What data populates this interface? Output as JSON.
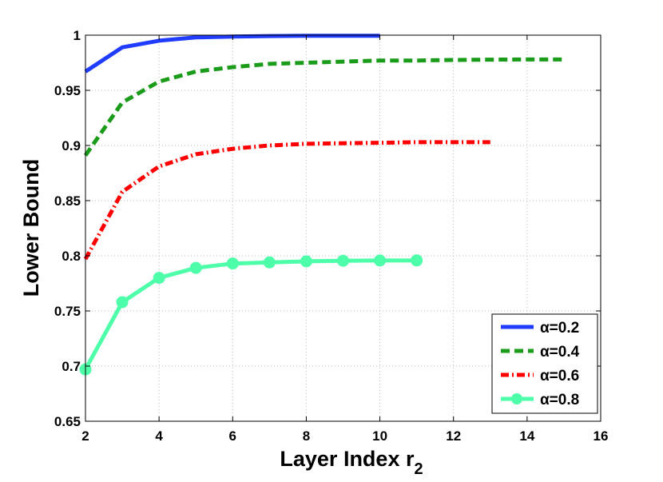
{
  "chart_data": {
    "type": "line",
    "xlabel": "Layer Index r",
    "xlabel_sub": "2",
    "ylabel": "Lower Bound",
    "xlim": [
      2,
      16
    ],
    "ylim": [
      0.65,
      1
    ],
    "xticks": [
      2,
      4,
      6,
      8,
      10,
      12,
      14,
      16
    ],
    "yticks": [
      0.65,
      0.7,
      0.75,
      0.8,
      0.85,
      0.9,
      0.95,
      1
    ],
    "ytick_labels": [
      "0.65",
      "0.7",
      "0.75",
      "0.8",
      "0.85",
      "0.9",
      "0.95",
      "1"
    ],
    "grid": true,
    "legend_position": "bottom-right",
    "series": [
      {
        "name": "α=0.2",
        "color": "#1f3cff",
        "style": "solid",
        "x": [
          2,
          3,
          4,
          5,
          6,
          7,
          8,
          9,
          10
        ],
        "y": [
          0.967,
          0.989,
          0.995,
          0.998,
          0.9988,
          0.9992,
          0.9994,
          0.9995,
          0.9995
        ]
      },
      {
        "name": "α=0.4",
        "color": "#1a9c1a",
        "style": "dashed",
        "x": [
          2,
          3,
          4,
          5,
          6,
          7,
          8,
          9,
          10,
          11,
          12,
          13,
          14,
          15
        ],
        "y": [
          0.891,
          0.939,
          0.958,
          0.967,
          0.971,
          0.974,
          0.975,
          0.976,
          0.977,
          0.977,
          0.9775,
          0.9778,
          0.978,
          0.978
        ]
      },
      {
        "name": "α=0.6",
        "color": "#ff0000",
        "style": "dashdot",
        "x": [
          2,
          3,
          4,
          5,
          6,
          7,
          8,
          9,
          10,
          11,
          12,
          13
        ],
        "y": [
          0.797,
          0.858,
          0.881,
          0.892,
          0.897,
          0.9,
          0.9015,
          0.902,
          0.9025,
          0.903,
          0.903,
          0.903
        ]
      },
      {
        "name": "α=0.8",
        "color": "#4dffa8",
        "style": "solid-markers",
        "x": [
          2,
          3,
          4,
          5,
          6,
          7,
          8,
          9,
          10,
          11
        ],
        "y": [
          0.697,
          0.758,
          0.78,
          0.789,
          0.793,
          0.794,
          0.795,
          0.7955,
          0.7957,
          0.7958
        ]
      }
    ]
  }
}
